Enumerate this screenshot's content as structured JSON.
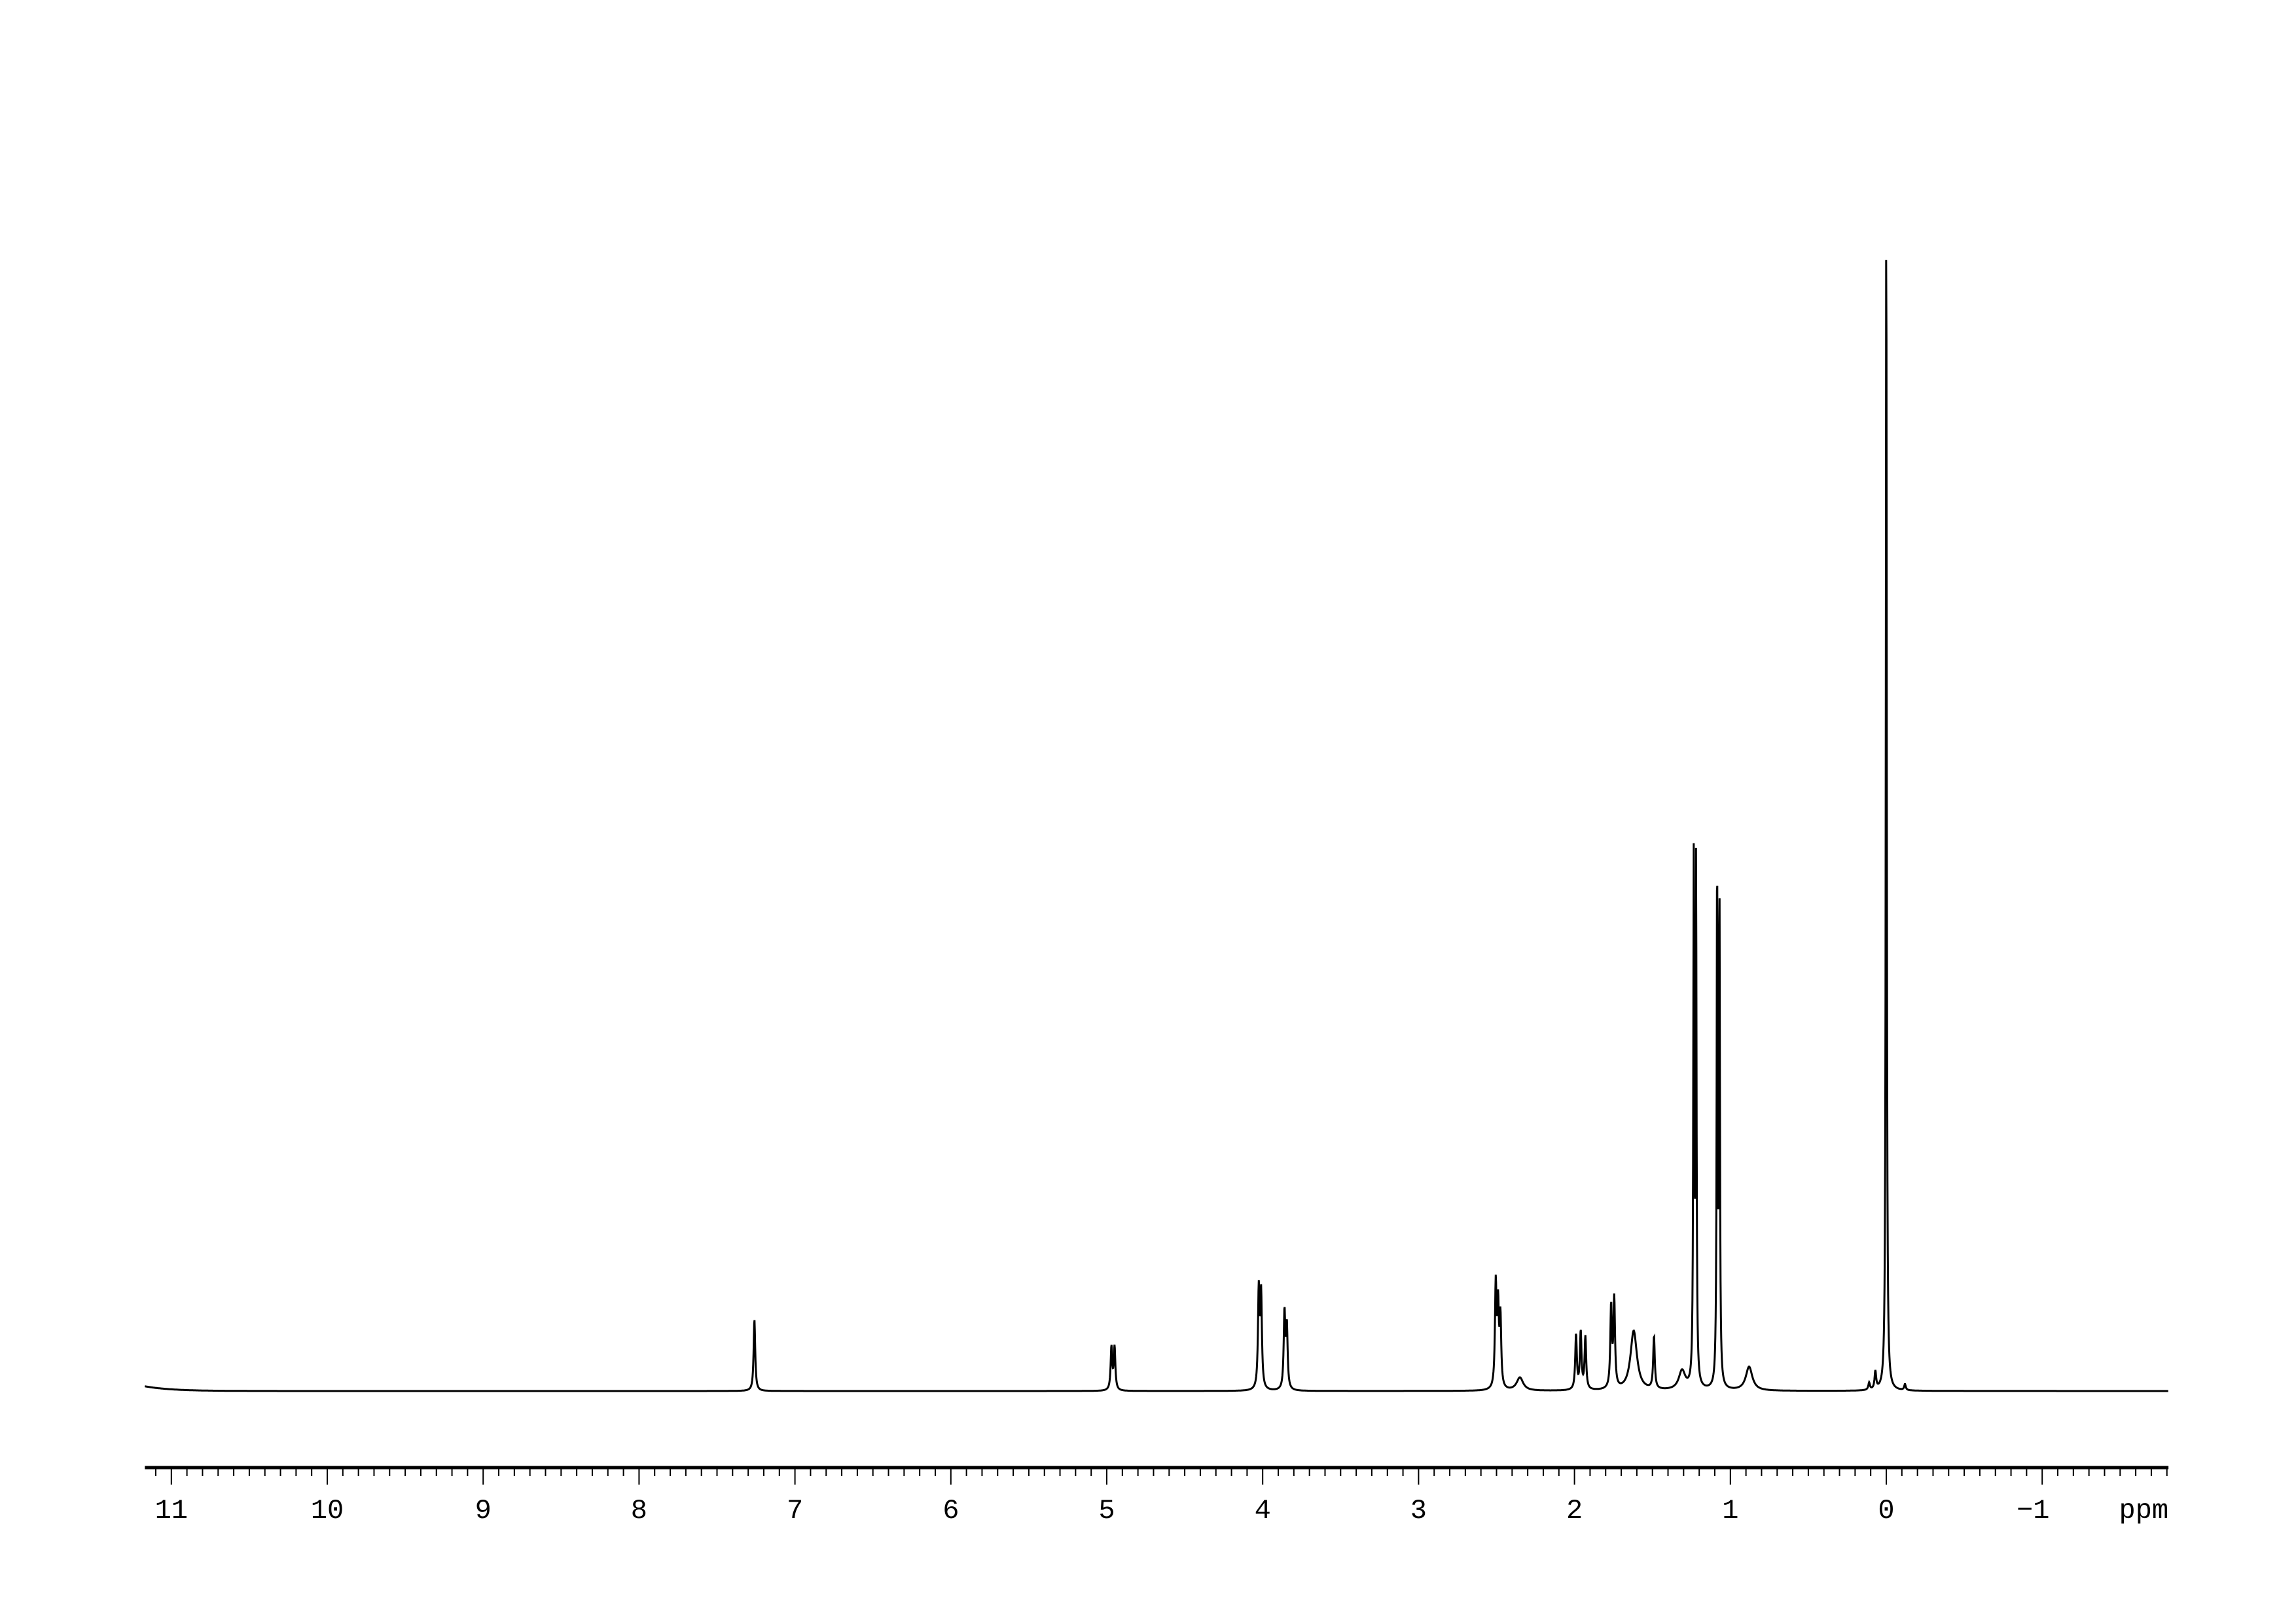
{
  "chart_data": {
    "type": "line",
    "title": "",
    "xlabel": "ppm",
    "ylabel": "",
    "xlim": [
      11.17,
      -1.81
    ],
    "x_reversed": true,
    "grid": false,
    "tick_labels": [
      "11",
      "10",
      "9",
      "8",
      "7",
      "6",
      "5",
      "4",
      "3",
      "2",
      "1",
      "0",
      "−1"
    ],
    "tick_values": [
      11,
      10,
      9,
      8,
      7,
      6,
      5,
      4,
      3,
      2,
      1,
      0,
      -1
    ],
    "minor_tick_step": 0.1,
    "line_color": "#000000",
    "peaks": [
      {
        "ppm": 7.26,
        "intensity": 6.0
      },
      {
        "ppm": 4.97,
        "intensity": 3.6
      },
      {
        "ppm": 4.95,
        "intensity": 3.6
      },
      {
        "ppm": 4.025,
        "intensity": 8.2
      },
      {
        "ppm": 4.01,
        "intensity": 7.8
      },
      {
        "ppm": 3.86,
        "intensity": 6.4
      },
      {
        "ppm": 3.845,
        "intensity": 5.2
      },
      {
        "ppm": 2.505,
        "intensity": 8.6
      },
      {
        "ppm": 2.49,
        "intensity": 6.5
      },
      {
        "ppm": 2.475,
        "intensity": 5.8
      },
      {
        "ppm": 2.35,
        "intensity": 1.1
      },
      {
        "ppm": 1.99,
        "intensity": 4.6
      },
      {
        "ppm": 1.96,
        "intensity": 4.8
      },
      {
        "ppm": 1.93,
        "intensity": 4.4
      },
      {
        "ppm": 1.765,
        "intensity": 6.8
      },
      {
        "ppm": 1.745,
        "intensity": 7.4
      },
      {
        "ppm": 1.62,
        "intensity": 5.0
      },
      {
        "ppm": 1.49,
        "intensity": 4.4
      },
      {
        "ppm": 1.31,
        "intensity": 1.6
      },
      {
        "ppm": 1.235,
        "intensity": 43.5
      },
      {
        "ppm": 1.22,
        "intensity": 43.5
      },
      {
        "ppm": 1.085,
        "intensity": 43.5
      },
      {
        "ppm": 1.07,
        "intensity": 41.0
      },
      {
        "ppm": 0.88,
        "intensity": 2.0
      },
      {
        "ppm": 0.07,
        "intensity": 1.5
      },
      {
        "ppm": 0.11,
        "intensity": 0.6
      },
      {
        "ppm": 0.0,
        "intensity": 100.0
      },
      {
        "ppm": -0.12,
        "intensity": 0.5
      }
    ]
  }
}
